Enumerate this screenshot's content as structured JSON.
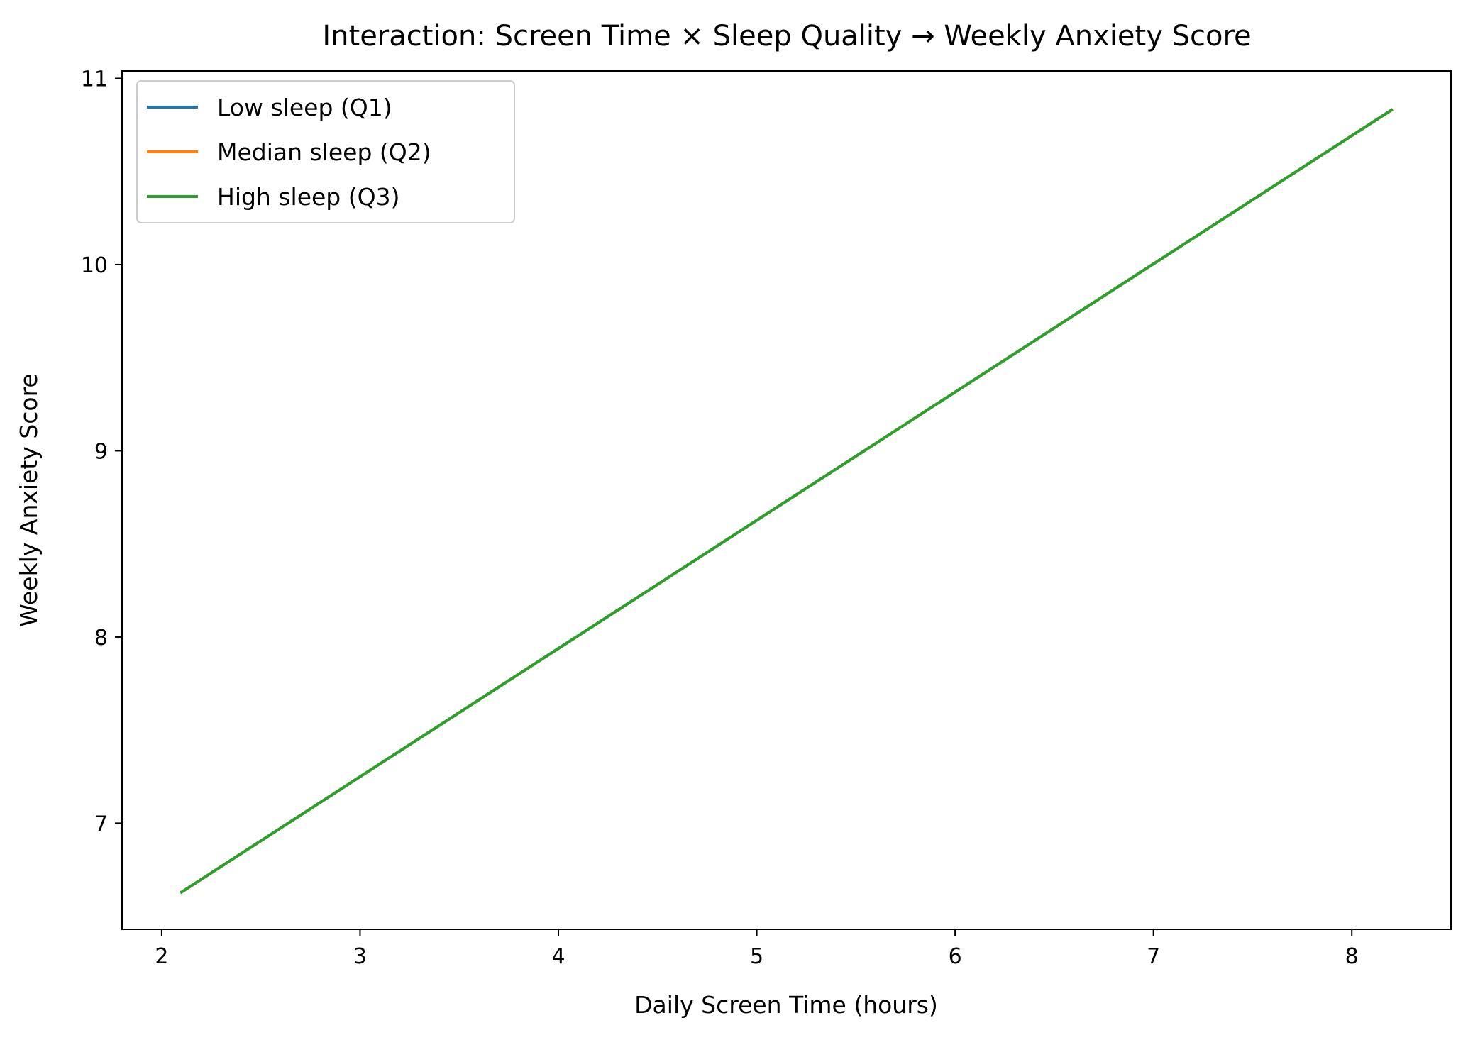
{
  "chart_data": {
    "type": "line",
    "title": "Interaction: Screen Time × Sleep Quality → Weekly Anxiety Score",
    "xlabel": "Daily Screen Time (hours)",
    "ylabel": "Weekly Anxiety Score",
    "xlim": [
      1.8,
      8.5
    ],
    "ylim": [
      6.43,
      11.04
    ],
    "xticks": [
      2,
      3,
      4,
      5,
      6,
      7,
      8
    ],
    "yticks": [
      7,
      8,
      9,
      10,
      11
    ],
    "grid": false,
    "legend_position": "top-left",
    "series": [
      {
        "name": "Low sleep (Q1)",
        "color": "#1f77b4",
        "x": [
          2.1,
          8.2
        ],
        "y": [
          6.63,
          10.83
        ]
      },
      {
        "name": "Median sleep (Q2)",
        "color": "#ff7f0e",
        "x": [
          2.1,
          8.2
        ],
        "y": [
          6.63,
          10.83
        ]
      },
      {
        "name": "High sleep (Q3)",
        "color": "#2ca02c",
        "x": [
          2.1,
          8.2
        ],
        "y": [
          6.63,
          10.83
        ]
      }
    ]
  }
}
